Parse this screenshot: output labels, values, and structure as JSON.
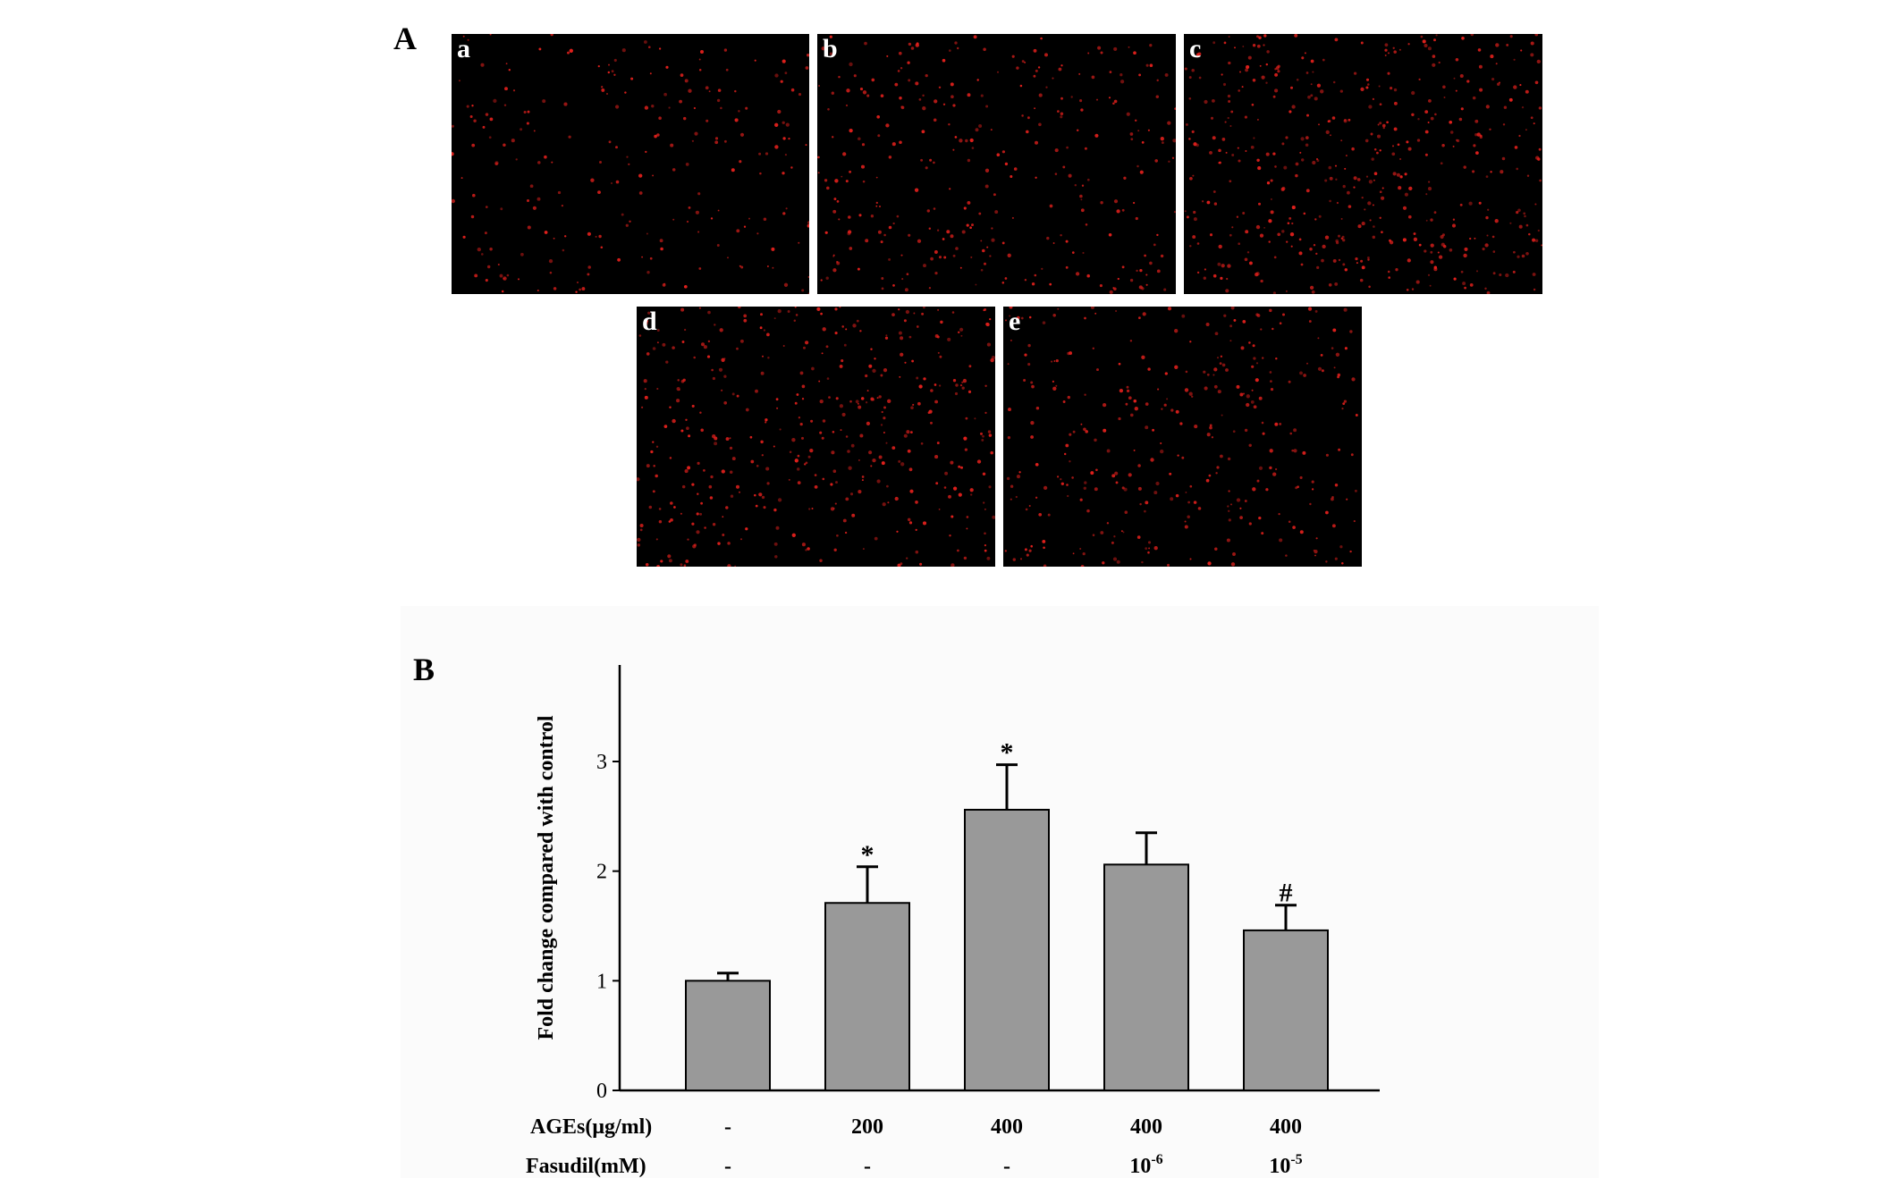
{
  "figure": {
    "panel_a_label": "A",
    "panel_b_label": "B",
    "micrographs": [
      {
        "label": "a",
        "density": 0.25
      },
      {
        "label": "b",
        "density": 0.45
      },
      {
        "label": "c",
        "density": 0.85
      },
      {
        "label": "d",
        "density": 0.7
      },
      {
        "label": "e",
        "density": 0.5
      }
    ],
    "dot_color": "#e0201c"
  },
  "chart_data": {
    "type": "bar",
    "ylabel": "Fold change compared with control",
    "ylim": [
      0,
      3.8
    ],
    "yticks": [
      0,
      1,
      2,
      3
    ],
    "bar_color": "#999999",
    "row_labels": [
      "AGEs(μg/ml)",
      "Fasudil(mM)"
    ],
    "categories": [
      {
        "ages": "-",
        "fasudil_base": "-",
        "fasudil_exp": ""
      },
      {
        "ages": "200",
        "fasudil_base": "-",
        "fasudil_exp": ""
      },
      {
        "ages": "400",
        "fasudil_base": "-",
        "fasudil_exp": ""
      },
      {
        "ages": "400",
        "fasudil_base": "10",
        "fasudil_exp": "-6"
      },
      {
        "ages": "400",
        "fasudil_base": "10",
        "fasudil_exp": "-5"
      }
    ],
    "values": [
      1.0,
      1.71,
      2.56,
      2.06,
      1.46
    ],
    "errors": [
      0.07,
      0.33,
      0.41,
      0.29,
      0.23
    ],
    "annotations": [
      "",
      "*",
      "*",
      "",
      "#"
    ]
  }
}
